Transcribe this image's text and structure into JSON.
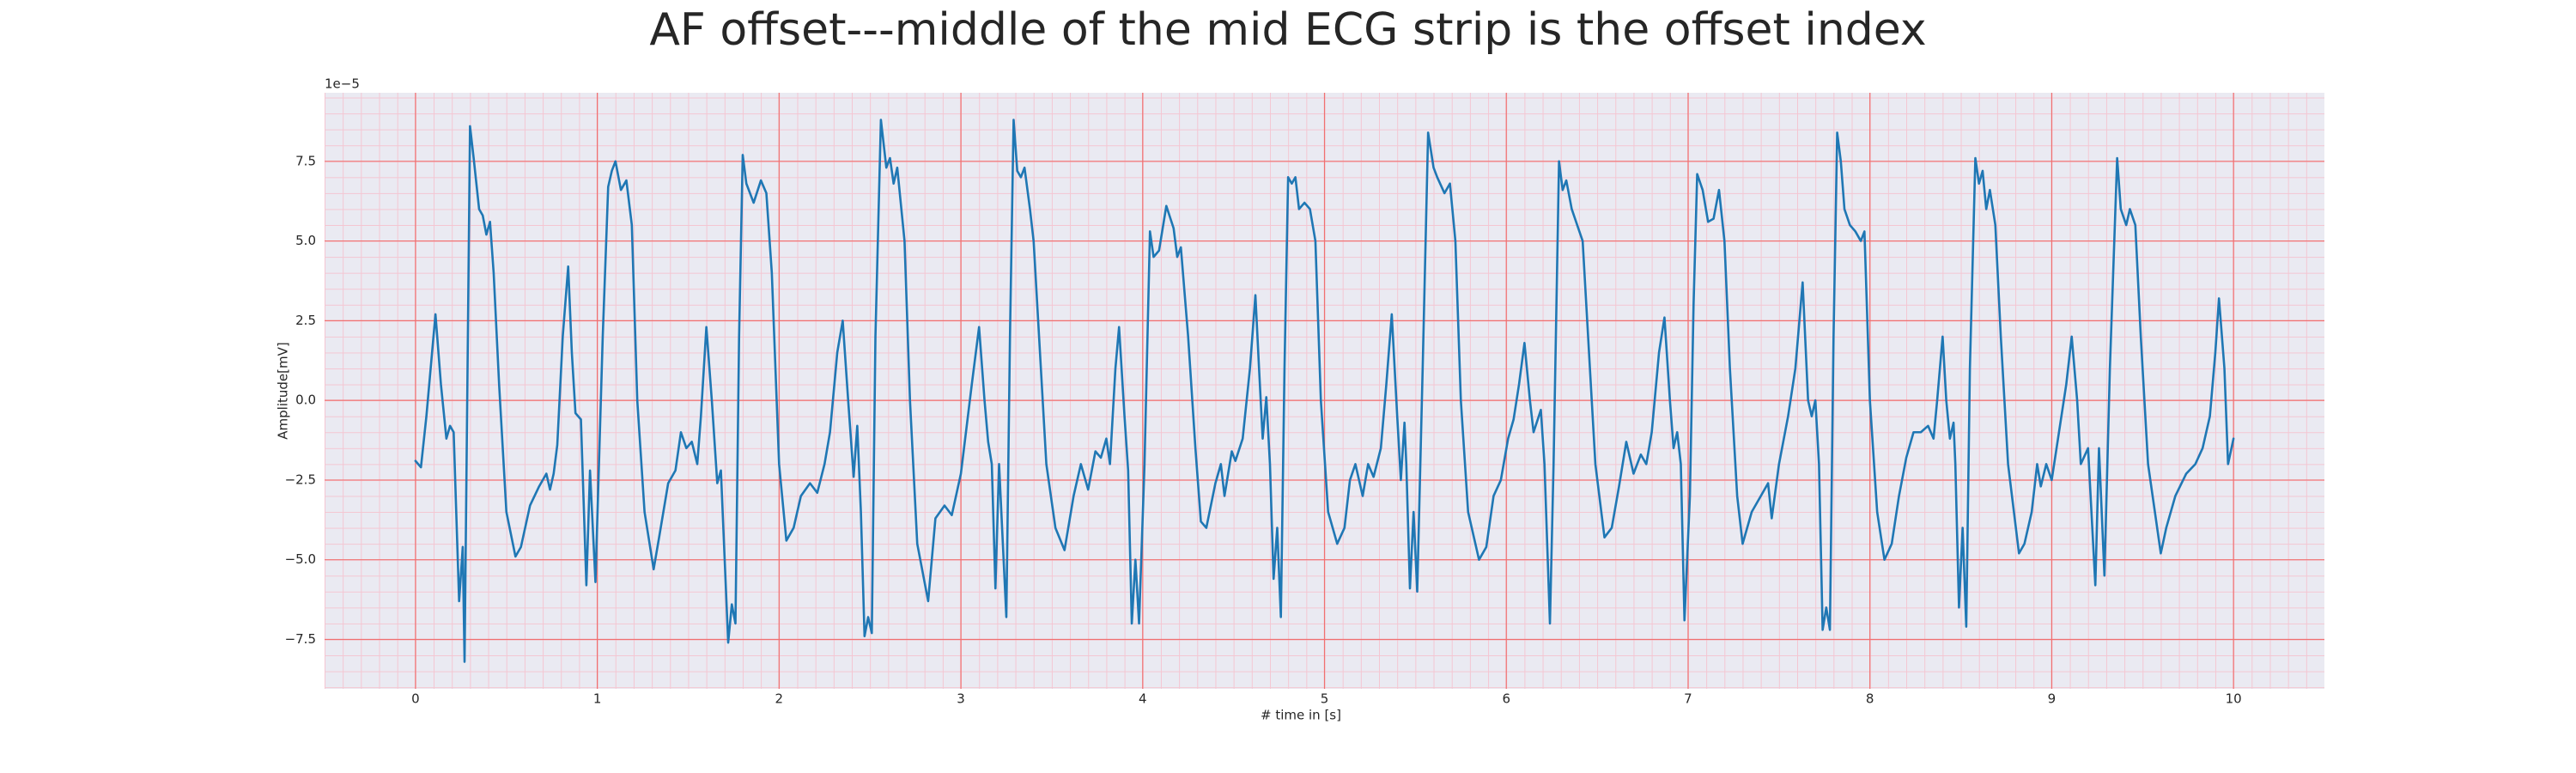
{
  "chart_data": {
    "type": "line",
    "title": "AF offset---middle of the mid ECG strip is the offset index",
    "xlabel": "# time in [s]",
    "ylabel": "Amplitude[mV]",
    "y_offset_label": "1e−5",
    "xlim": [
      -0.5,
      10.5
    ],
    "ylim": [
      -9.05,
      9.65
    ],
    "xticks": [
      0,
      1,
      2,
      3,
      4,
      5,
      6,
      7,
      8,
      9,
      10
    ],
    "yticks": [
      {
        "value": -7.5,
        "label": "−7.5"
      },
      {
        "value": -5,
        "label": "−5.0"
      },
      {
        "value": -2.5,
        "label": "−2.5"
      },
      {
        "value": 0,
        "label": "0.0"
      },
      2.5,
      {
        "value": 5,
        "label": "5.0"
      },
      7.5
    ],
    "grid": true,
    "minor_grid": true,
    "background": "#eaeaf2",
    "grid_color": "#f07070",
    "minor_grid_color": "#f4c6d2",
    "series": [
      {
        "color": "#1f77b4",
        "x": [
          0.0,
          0.03,
          0.06,
          0.11,
          0.14,
          0.17,
          0.19,
          0.21,
          0.24,
          0.26,
          0.27,
          0.3,
          0.32,
          0.35,
          0.37,
          0.39,
          0.41,
          0.43,
          0.46,
          0.5,
          0.55,
          0.58,
          0.63,
          0.68,
          0.72,
          0.74,
          0.76,
          0.78,
          0.81,
          0.84,
          0.86,
          0.88,
          0.91,
          0.94,
          0.96,
          0.99,
          1.03,
          1.06,
          1.08,
          1.1,
          1.13,
          1.16,
          1.19,
          1.22,
          1.26,
          1.31,
          1.34,
          1.39,
          1.43,
          1.46,
          1.49,
          1.52,
          1.55,
          1.57,
          1.6,
          1.63,
          1.66,
          1.68,
          1.72,
          1.74,
          1.76,
          1.78,
          1.8,
          1.82,
          1.86,
          1.9,
          1.93,
          1.96,
          2.0,
          2.04,
          2.08,
          2.12,
          2.17,
          2.21,
          2.25,
          2.28,
          2.32,
          2.35,
          2.38,
          2.41,
          2.43,
          2.45,
          2.47,
          2.49,
          2.51,
          2.53,
          2.56,
          2.59,
          2.61,
          2.63,
          2.65,
          2.69,
          2.72,
          2.76,
          2.82,
          2.86,
          2.91,
          2.95,
          3.0,
          3.06,
          3.1,
          3.13,
          3.15,
          3.17,
          3.19,
          3.21,
          3.25,
          3.27,
          3.29,
          3.31,
          3.33,
          3.35,
          3.38,
          3.4,
          3.43,
          3.47,
          3.52,
          3.57,
          3.62,
          3.66,
          3.7,
          3.74,
          3.77,
          3.8,
          3.82,
          3.85,
          3.87,
          3.9,
          3.92,
          3.94,
          3.96,
          3.98,
          4.01,
          4.04,
          4.06,
          4.09,
          4.13,
          4.17,
          4.19,
          4.21,
          4.25,
          4.29,
          4.32,
          4.35,
          4.4,
          4.43,
          4.45,
          4.49,
          4.51,
          4.55,
          4.59,
          4.62,
          4.64,
          4.66,
          4.68,
          4.7,
          4.72,
          4.74,
          4.76,
          4.78,
          4.8,
          4.82,
          4.84,
          4.86,
          4.89,
          4.92,
          4.95,
          4.98,
          5.02,
          5.07,
          5.11,
          5.14,
          5.17,
          5.21,
          5.24,
          5.27,
          5.31,
          5.34,
          5.37,
          5.4,
          5.42,
          5.44,
          5.45,
          5.47,
          5.49,
          5.51,
          5.54,
          5.57,
          5.6,
          5.62,
          5.66,
          5.69,
          5.72,
          5.75,
          5.79,
          5.85,
          5.89,
          5.93,
          5.97,
          6.01,
          6.04,
          6.07,
          6.1,
          6.13,
          6.15,
          6.19,
          6.21,
          6.24,
          6.26,
          6.29,
          6.31,
          6.33,
          6.36,
          6.39,
          6.42,
          6.45,
          6.49,
          6.54,
          6.58,
          6.62,
          6.66,
          6.7,
          6.74,
          6.77,
          6.8,
          6.84,
          6.87,
          6.9,
          6.92,
          6.94,
          6.96,
          6.98,
          7.01,
          7.03,
          7.05,
          7.08,
          7.11,
          7.14,
          7.17,
          7.2,
          7.23,
          7.27,
          7.3,
          7.35,
          7.4,
          7.44,
          7.46,
          7.5,
          7.55,
          7.59,
          7.63,
          7.66,
          7.68,
          7.7,
          7.72,
          7.74,
          7.76,
          7.78,
          7.8,
          7.82,
          7.84,
          7.86,
          7.89,
          7.92,
          7.95,
          7.97,
          8.0,
          8.04,
          8.08,
          8.12,
          8.16,
          8.2,
          8.24,
          8.28,
          8.32,
          8.35,
          8.37,
          8.4,
          8.42,
          8.44,
          8.46,
          8.47,
          8.49,
          8.51,
          8.53,
          8.55,
          8.58,
          8.6,
          8.62,
          8.64,
          8.66,
          8.69,
          8.72,
          8.76,
          8.82,
          8.85,
          8.89,
          8.92,
          8.94,
          8.97,
          9.0,
          9.04,
          9.08,
          9.11,
          9.14,
          9.16,
          9.2,
          9.24,
          9.26,
          9.29,
          9.32,
          9.36,
          9.38,
          9.41,
          9.43,
          9.46,
          9.49,
          9.53,
          9.6,
          9.63,
          9.68,
          9.74,
          9.79,
          9.83,
          9.87,
          9.9,
          9.92,
          9.95,
          9.97,
          10.0
        ],
        "values": [
          -1.9,
          -2.1,
          -0.5,
          2.7,
          0.5,
          -1.2,
          -0.8,
          -1.0,
          -6.3,
          -4.6,
          -8.2,
          8.6,
          7.6,
          6.0,
          5.8,
          5.2,
          5.6,
          4.0,
          0.5,
          -3.5,
          -4.9,
          -4.6,
          -3.3,
          -2.7,
          -2.3,
          -2.8,
          -2.3,
          -1.4,
          2.0,
          4.2,
          1.5,
          -0.4,
          -0.6,
          -5.8,
          -2.2,
          -5.7,
          2.0,
          6.7,
          7.2,
          7.5,
          6.6,
          6.9,
          5.5,
          0,
          -3.5,
          -5.3,
          -4.3,
          -2.6,
          -2.2,
          -1.0,
          -1.5,
          -1.3,
          -2.0,
          -0.5,
          2.3,
          0,
          -2.6,
          -2.2,
          -7.6,
          -6.4,
          -7.0,
          2.0,
          7.7,
          6.8,
          6.2,
          6.9,
          6.5,
          4.0,
          -2.0,
          -4.4,
          -4.0,
          -3.0,
          -2.6,
          -2.9,
          -2.0,
          -1.0,
          1.5,
          2.5,
          0,
          -2.4,
          -0.8,
          -3.5,
          -7.4,
          -6.8,
          -7.3,
          2.0,
          8.8,
          7.3,
          7.6,
          6.8,
          7.3,
          5.0,
          0,
          -4.5,
          -6.3,
          -3.7,
          -3.3,
          -3.6,
          -2.3,
          0.5,
          2.3,
          0,
          -1.3,
          -2.0,
          -5.9,
          -2.0,
          -6.8,
          2.0,
          8.8,
          7.2,
          7.0,
          7.3,
          6.0,
          5.0,
          2.0,
          -2.0,
          -4.0,
          -4.7,
          -3.0,
          -2.0,
          -2.8,
          -1.6,
          -1.8,
          -1.2,
          -2.0,
          1.0,
          2.3,
          -0.5,
          -2.2,
          -7.0,
          -5.0,
          -7.0,
          -2.0,
          5.3,
          4.5,
          4.7,
          6.1,
          5.4,
          4.5,
          4.8,
          2.0,
          -1.5,
          -3.8,
          -4.0,
          -2.6,
          -2.0,
          -3.0,
          -1.6,
          -1.9,
          -1.2,
          1.0,
          3.3,
          1.0,
          -1.2,
          0.1,
          -2.0,
          -5.6,
          -4.0,
          -6.8,
          1.0,
          7.0,
          6.8,
          7.0,
          6.0,
          6.2,
          6.0,
          5.0,
          0,
          -3.5,
          -4.5,
          -4.0,
          -2.5,
          -2.0,
          -3.0,
          -2.0,
          -2.4,
          -1.5,
          0.5,
          2.7,
          -0.5,
          -2.5,
          -0.7,
          -2.0,
          -5.9,
          -3.5,
          -6.0,
          1.0,
          8.4,
          7.3,
          7.0,
          6.5,
          6.8,
          5.0,
          0,
          -3.5,
          -5.0,
          -4.6,
          -3.0,
          -2.5,
          -1.2,
          -0.6,
          0.5,
          1.8,
          0,
          -1.0,
          -0.3,
          -2.0,
          -7.0,
          -2.0,
          7.5,
          6.6,
          6.9,
          6.0,
          5.5,
          5.0,
          2.0,
          -2.0,
          -4.3,
          -4.0,
          -2.7,
          -1.3,
          -2.3,
          -1.7,
          -2.0,
          -1.0,
          1.5,
          2.6,
          0,
          -1.5,
          -1.0,
          -2.0,
          -6.9,
          -3.0,
          3.0,
          7.1,
          6.6,
          5.6,
          5.7,
          6.6,
          5.0,
          1.0,
          -3.0,
          -4.5,
          -3.5,
          -3.0,
          -2.6,
          -3.7,
          -2.0,
          -0.5,
          1.0,
          3.7,
          0,
          -0.5,
          0,
          -2.0,
          -7.2,
          -6.5,
          -7.2,
          2.0,
          8.4,
          7.5,
          6.0,
          5.5,
          5.3,
          5.0,
          5.3,
          0,
          -3.5,
          -5.0,
          -4.5,
          -3.0,
          -1.8,
          -1.0,
          -1.0,
          -0.8,
          -1.2,
          0,
          2.0,
          0,
          -1.2,
          -0.7,
          -2.0,
          -6.5,
          -4.0,
          -7.1,
          1.0,
          7.6,
          6.8,
          7.2,
          6.0,
          6.6,
          5.5,
          2.0,
          -2.0,
          -4.8,
          -4.5,
          -3.5,
          -2.0,
          -2.7,
          -2.0,
          -2.5,
          -1.0,
          0.5,
          2.0,
          0,
          -2.0,
          -1.5,
          -5.8,
          -1.5,
          -5.5,
          1.0,
          7.6,
          6.0,
          5.5,
          6.0,
          5.5,
          2.0,
          -2.0,
          -4.8,
          -4.0,
          -3.0,
          -2.3,
          -2.0,
          -1.5,
          -0.5,
          1.5,
          3.2,
          1.0,
          -2.0,
          -1.2
        ]
      }
    ]
  }
}
